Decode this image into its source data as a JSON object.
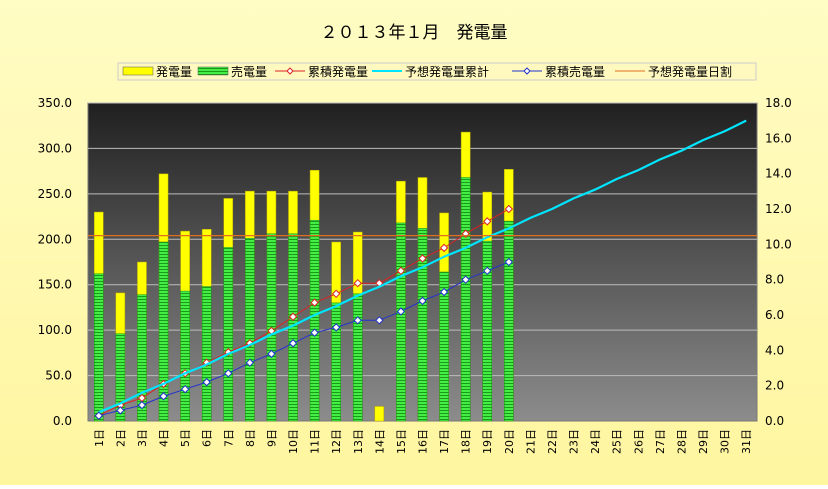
{
  "chart_data": {
    "type": "bar",
    "title": "２０１３年１月　発電量",
    "categories": [
      "1日",
      "2日",
      "3日",
      "4日",
      "5日",
      "6日",
      "7日",
      "8日",
      "9日",
      "10日",
      "11日",
      "12日",
      "13日",
      "14日",
      "15日",
      "16日",
      "17日",
      "18日",
      "19日",
      "20日",
      "21日",
      "22日",
      "23日",
      "24日",
      "25日",
      "26日",
      "27日",
      "28日",
      "29日",
      "30日",
      "31日"
    ],
    "y_left": {
      "min": 0,
      "max": 350,
      "step": 50,
      "ticks": [
        "0.0",
        "50.0",
        "100.0",
        "150.0",
        "200.0",
        "250.0",
        "300.0",
        "350.0"
      ]
    },
    "y_right": {
      "min": 0,
      "max": 18,
      "step": 2,
      "ticks": [
        "0.0",
        "2.0",
        "4.0",
        "6.0",
        "8.0",
        "10.0",
        "12.0",
        "14.0",
        "16.0",
        "18.0"
      ]
    },
    "grid": true,
    "legend_position": "top",
    "series": [
      {
        "name": "発電量",
        "type": "bar",
        "axis": "left",
        "color": "#ffff00",
        "values": [
          230,
          141,
          175,
          272,
          209,
          211,
          245,
          253,
          253,
          253,
          276,
          197,
          208,
          16,
          264,
          268,
          229,
          318,
          252,
          277,
          null,
          null,
          null,
          null,
          null,
          null,
          null,
          null,
          null,
          null,
          null
        ]
      },
      {
        "name": "売電量",
        "type": "bar",
        "axis": "left",
        "color": "#33dd33",
        "values": [
          162,
          96,
          139,
          197,
          143,
          148,
          191,
          201,
          206,
          206,
          221,
          130,
          140,
          0,
          218,
          212,
          164,
          268,
          198,
          220,
          null,
          null,
          null,
          null,
          null,
          null,
          null,
          null,
          null,
          null,
          null
        ]
      },
      {
        "name": "累積発電量",
        "type": "line",
        "axis": "right",
        "color": "#dd2222",
        "values": [
          0.3,
          0.9,
          1.3,
          2.1,
          2.7,
          3.3,
          3.9,
          4.4,
          5.1,
          5.9,
          6.7,
          7.2,
          7.8,
          7.8,
          8.5,
          9.2,
          9.8,
          10.6,
          11.3,
          12.0,
          null,
          null,
          null,
          null,
          null,
          null,
          null,
          null,
          null,
          null,
          null
        ]
      },
      {
        "name": "予想発電量累計",
        "type": "line",
        "axis": "right",
        "color": "#00e5ff",
        "values": [
          0.5,
          1.0,
          1.6,
          2.1,
          2.7,
          3.2,
          3.8,
          4.3,
          4.9,
          5.4,
          6.0,
          6.5,
          7.1,
          7.6,
          8.2,
          8.7,
          9.3,
          9.8,
          10.4,
          10.9,
          11.5,
          12.0,
          12.6,
          13.1,
          13.7,
          14.2,
          14.8,
          15.3,
          15.9,
          16.4,
          17.0
        ]
      },
      {
        "name": "累積売電量",
        "type": "line",
        "axis": "right",
        "color": "#2233cc",
        "values": [
          0.3,
          0.6,
          0.9,
          1.4,
          1.8,
          2.2,
          2.7,
          3.3,
          3.8,
          4.4,
          5.0,
          5.3,
          5.7,
          5.7,
          6.2,
          6.8,
          7.3,
          8.0,
          8.5,
          9.0,
          null,
          null,
          null,
          null,
          null,
          null,
          null,
          null,
          null,
          null,
          null
        ]
      },
      {
        "name": "予想発電量日割",
        "type": "line",
        "axis": "left",
        "color": "#e07020",
        "values": [
          204,
          204,
          204,
          204,
          204,
          204,
          204,
          204,
          204,
          204,
          204,
          204,
          204,
          204,
          204,
          204,
          204,
          204,
          204,
          204,
          204,
          204,
          204,
          204,
          204,
          204,
          204,
          204,
          204,
          204,
          204
        ]
      }
    ]
  }
}
